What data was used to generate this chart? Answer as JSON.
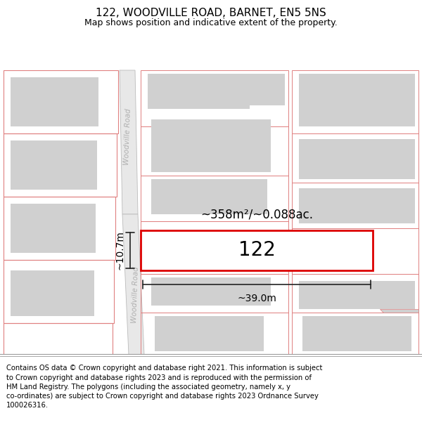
{
  "title": "122, WOODVILLE ROAD, BARNET, EN5 5NS",
  "subtitle": "Map shows position and indicative extent of the property.",
  "footer": "Contains OS data © Crown copyright and database right 2021. This information is subject\nto Crown copyright and database rights 2023 and is reproduced with the permission of\nHM Land Registry. The polygons (including the associated geometry, namely x, y\nco-ordinates) are subject to Crown copyright and database rights 2023 Ordnance Survey\n100026316.",
  "plot_label": "122",
  "area_label": "~358m²/~0.088ac.",
  "width_label": "~39.0m",
  "height_label": "~10.7m",
  "road_label": "Woodville Road",
  "map_bg": "#f5f5f5",
  "block_fill": "#d0d0d0",
  "block_edge": "#e08080",
  "road_fill": "#e8e8e8",
  "road_edge": "#bbbbbb",
  "plot_fill": "#ffffff",
  "plot_edge": "#dd0000",
  "dim_color": "#222222",
  "road_text_color": "#b0b0b0",
  "footer_sep_color": "#999999"
}
